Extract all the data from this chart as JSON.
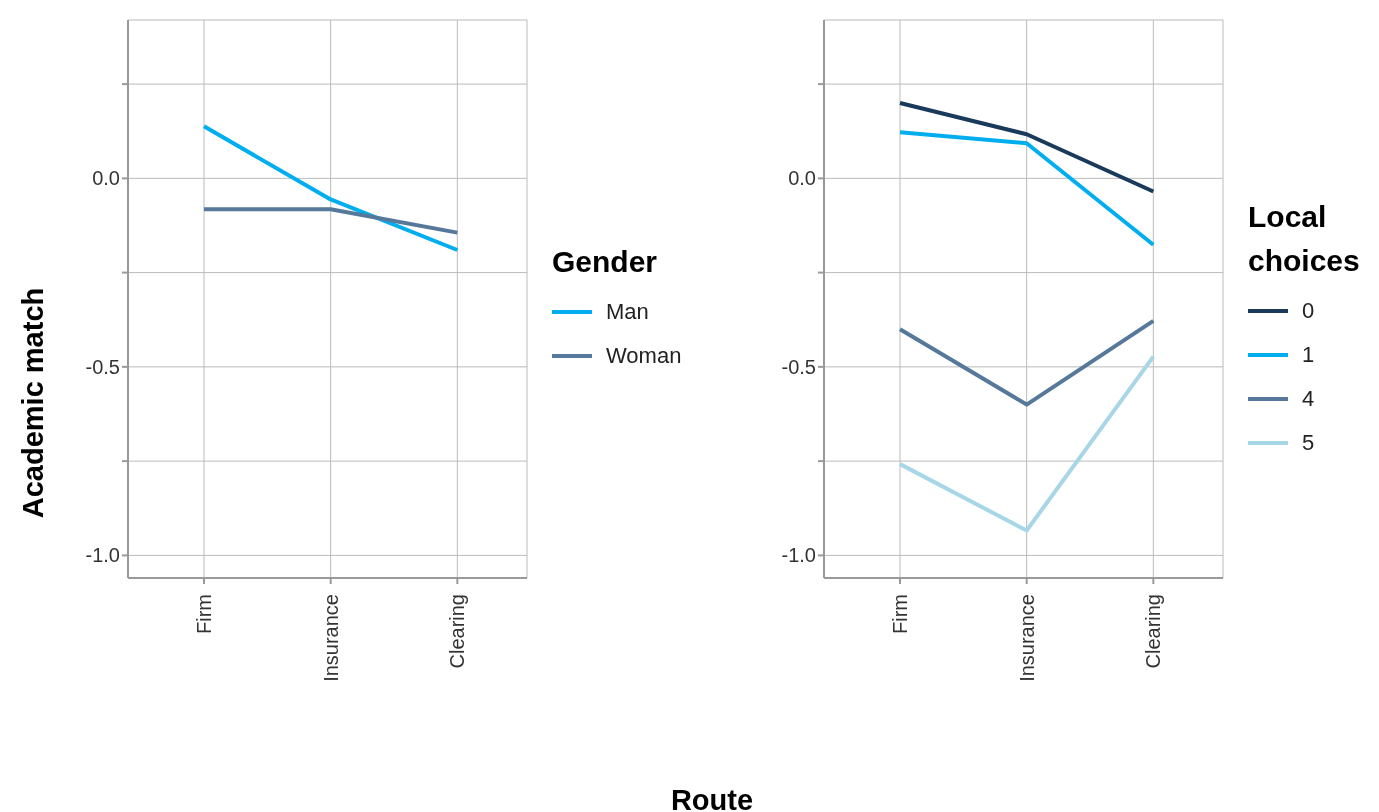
{
  "chart_data": [
    {
      "type": "line",
      "ylabel": "Academic match",
      "legend_title": "Gender",
      "legend": "right",
      "grid": true,
      "marker": "none",
      "categories": [
        "Firm",
        "Insurance",
        "Clearing"
      ],
      "ylim": [
        -1.06,
        0.42
      ],
      "yticks": [
        {
          "value": -1.0,
          "label": "-1.0"
        },
        {
          "value": -0.75,
          "label": null
        },
        {
          "value": -0.5,
          "label": "-0.5"
        },
        {
          "value": -0.25,
          "label": null
        },
        {
          "value": 0.0,
          "label": "0.0"
        },
        {
          "value": 0.25,
          "label": null
        }
      ],
      "series": [
        {
          "name": "Man",
          "color": "#00aeef",
          "values": [
            0.138,
            -0.056,
            -0.19
          ]
        },
        {
          "name": "Woman",
          "color": "#56789a",
          "values": [
            -0.082,
            -0.082,
            -0.144
          ]
        }
      ]
    },
    {
      "type": "line",
      "xlabel": "Route",
      "legend_title": "Local choices",
      "legend": "right",
      "grid": true,
      "marker": "none",
      "categories": [
        "Firm",
        "Insurance",
        "Clearing"
      ],
      "ylim": [
        -1.06,
        0.42
      ],
      "yticks": [
        {
          "value": -1.0,
          "label": "-1.0"
        },
        {
          "value": -0.75,
          "label": null
        },
        {
          "value": -0.5,
          "label": "-0.5"
        },
        {
          "value": -0.25,
          "label": null
        },
        {
          "value": 0.0,
          "label": "0.0"
        },
        {
          "value": 0.25,
          "label": null
        }
      ],
      "series": [
        {
          "name": "0",
          "color": "#1a3a5c",
          "values": [
            0.2,
            0.117,
            -0.035
          ]
        },
        {
          "name": "1",
          "color": "#00aeef",
          "values": [
            0.122,
            0.093,
            -0.176
          ]
        },
        {
          "name": "4",
          "color": "#56789a",
          "values": [
            -0.4,
            -0.6,
            -0.378
          ]
        },
        {
          "name": "5",
          "color": "#a7d6e6",
          "values": [
            -0.758,
            -0.934,
            -0.473
          ]
        }
      ]
    }
  ]
}
